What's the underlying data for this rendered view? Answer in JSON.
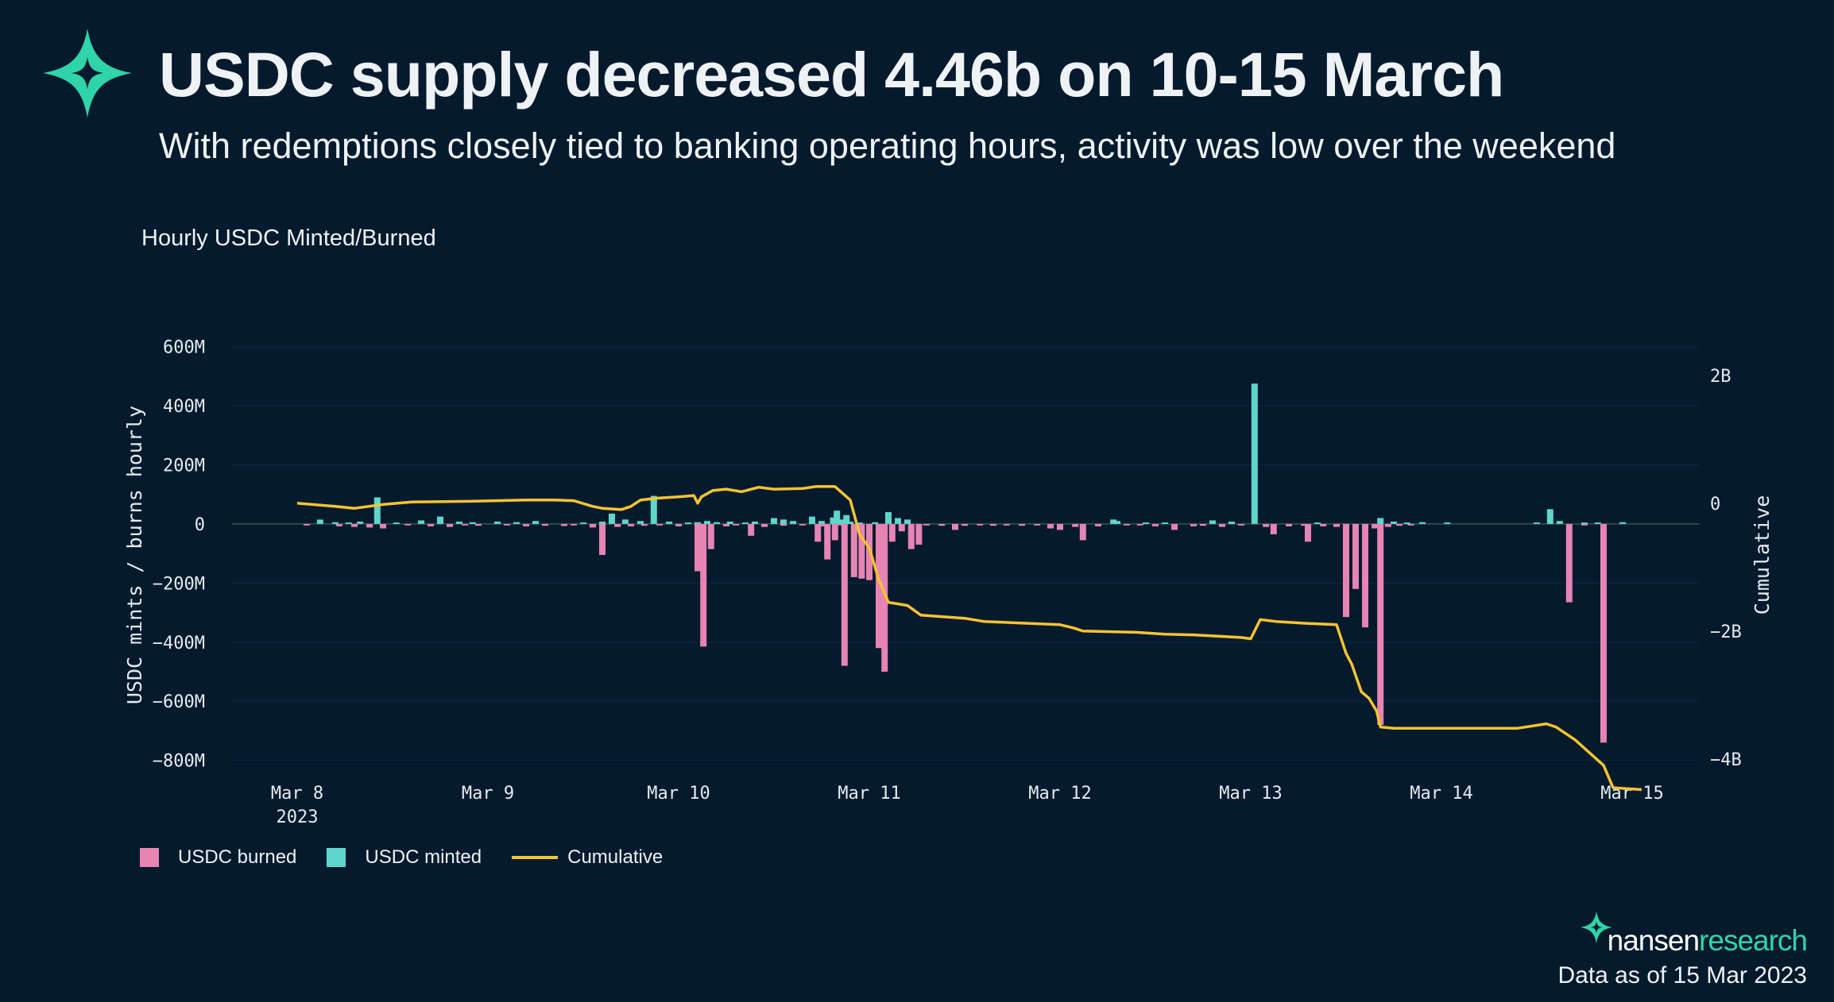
{
  "header": {
    "title": "USDC supply decreased 4.46b on 10-15 March",
    "subtitle": "With redemptions closely tied to banking operating hours, activity was low over the weekend"
  },
  "footer": {
    "brand_name": "nansen",
    "brand_suffix": "research",
    "data_as_of": "Data as of 15 Mar 2023"
  },
  "colors": {
    "background": "#061a2e",
    "burned": "#e684b3",
    "minted": "#5ed6cc",
    "cumulative": "#f5c431",
    "brand": "#2fd4a9"
  },
  "legend": [
    {
      "label": "USDC burned",
      "key": "burned"
    },
    {
      "label": "USDC minted",
      "key": "minted"
    },
    {
      "label": "Cumulative",
      "key": "cumulative"
    }
  ],
  "chart_data": {
    "type": "bar+line",
    "title": "Hourly USDC Minted/Burned",
    "ylabel": "USDC mints / burns hourly",
    "y2label": "Cumulative",
    "x_unit": "days since Mar 8 2023 00:00",
    "xlim": [
      -0.3,
      7.35
    ],
    "ylim": [
      -860,
      650
    ],
    "y2lim": [
      -4.3,
      2.68
    ],
    "x_ticks": [
      {
        "x": 0,
        "label": "Mar 8",
        "sub": "2023"
      },
      {
        "x": 1,
        "label": "Mar 9"
      },
      {
        "x": 2,
        "label": "Mar 10"
      },
      {
        "x": 3,
        "label": "Mar 11"
      },
      {
        "x": 4,
        "label": "Mar 12"
      },
      {
        "x": 5,
        "label": "Mar 13"
      },
      {
        "x": 6,
        "label": "Mar 14"
      },
      {
        "x": 7,
        "label": "Mar 15"
      }
    ],
    "y_ticks": [
      {
        "v": 600,
        "label": "600M"
      },
      {
        "v": 400,
        "label": "400M"
      },
      {
        "v": 200,
        "label": "200M"
      },
      {
        "v": 0,
        "label": "0"
      },
      {
        "v": -200,
        "label": "−200M"
      },
      {
        "v": -400,
        "label": "−400M"
      },
      {
        "v": -600,
        "label": "−600M"
      },
      {
        "v": -800,
        "label": "−800M"
      }
    ],
    "y2_ticks": [
      {
        "v": 2,
        "label": "2B"
      },
      {
        "v": 0,
        "label": "0"
      },
      {
        "v": -2,
        "label": "−2B"
      },
      {
        "v": -4,
        "label": "−4B"
      }
    ],
    "minted": [
      [
        0.12,
        15
      ],
      [
        0.2,
        6
      ],
      [
        0.27,
        5
      ],
      [
        0.33,
        8
      ],
      [
        0.42,
        90
      ],
      [
        0.52,
        5
      ],
      [
        0.65,
        12
      ],
      [
        0.75,
        25
      ],
      [
        0.85,
        8
      ],
      [
        0.92,
        6
      ],
      [
        1.05,
        8
      ],
      [
        1.15,
        6
      ],
      [
        1.25,
        10
      ],
      [
        1.5,
        5
      ],
      [
        1.6,
        8
      ],
      [
        1.65,
        35
      ],
      [
        1.72,
        15
      ],
      [
        1.8,
        10
      ],
      [
        1.87,
        95
      ],
      [
        1.95,
        8
      ],
      [
        2.05,
        5
      ],
      [
        2.15,
        10
      ],
      [
        2.1,
        6
      ],
      [
        2.2,
        6
      ],
      [
        2.27,
        8
      ],
      [
        2.35,
        5
      ],
      [
        2.4,
        8
      ],
      [
        2.5,
        20
      ],
      [
        2.55,
        15
      ],
      [
        2.6,
        10
      ],
      [
        2.7,
        25
      ],
      [
        2.75,
        10
      ],
      [
        2.81,
        22
      ],
      [
        2.85,
        15
      ],
      [
        2.9,
        8
      ],
      [
        2.95,
        5
      ],
      [
        2.83,
        45
      ],
      [
        2.88,
        30
      ],
      [
        3.03,
        6
      ],
      [
        3.1,
        40
      ],
      [
        3.15,
        20
      ],
      [
        3.2,
        15
      ],
      [
        4.28,
        15
      ],
      [
        4.3,
        10
      ],
      [
        4.45,
        5
      ],
      [
        4.55,
        5
      ],
      [
        4.8,
        12
      ],
      [
        4.9,
        8
      ],
      [
        5.02,
        475
      ],
      [
        5.35,
        5
      ],
      [
        5.68,
        20
      ],
      [
        5.75,
        8
      ],
      [
        5.82,
        5
      ],
      [
        5.9,
        6
      ],
      [
        6.03,
        5
      ],
      [
        6.5,
        5
      ],
      [
        6.57,
        50
      ],
      [
        6.62,
        10
      ],
      [
        6.75,
        5
      ],
      [
        6.82,
        5
      ],
      [
        6.95,
        6
      ]
    ],
    "burned": [
      [
        0.05,
        -5
      ],
      [
        0.22,
        -8
      ],
      [
        0.3,
        -10
      ],
      [
        0.38,
        -12
      ],
      [
        0.45,
        -15
      ],
      [
        0.58,
        -5
      ],
      [
        0.7,
        -8
      ],
      [
        0.8,
        -10
      ],
      [
        0.88,
        -5
      ],
      [
        0.95,
        -6
      ],
      [
        1.1,
        -5
      ],
      [
        1.2,
        -8
      ],
      [
        1.3,
        -6
      ],
      [
        1.4,
        -7
      ],
      [
        1.45,
        -5
      ],
      [
        1.55,
        -12
      ],
      [
        1.6,
        -105
      ],
      [
        1.68,
        -10
      ],
      [
        1.75,
        -8
      ],
      [
        1.82,
        -6
      ],
      [
        1.9,
        -5
      ],
      [
        2.0,
        -8
      ],
      [
        2.1,
        -30
      ],
      [
        2.25,
        -5
      ],
      [
        2.1,
        -160
      ],
      [
        2.13,
        -415
      ],
      [
        2.17,
        -85
      ],
      [
        2.25,
        -8
      ],
      [
        2.3,
        -5
      ],
      [
        2.38,
        -40
      ],
      [
        2.45,
        -10
      ],
      [
        2.55,
        -6
      ],
      [
        2.65,
        -5
      ],
      [
        2.75,
        -8
      ],
      [
        2.85,
        -5
      ],
      [
        2.95,
        -5
      ],
      [
        2.73,
        -60
      ],
      [
        2.78,
        -120
      ],
      [
        2.82,
        -55
      ],
      [
        2.87,
        -480
      ],
      [
        2.92,
        -180
      ],
      [
        2.96,
        -185
      ],
      [
        3.0,
        -190
      ],
      [
        3.05,
        -420
      ],
      [
        3.08,
        -500
      ],
      [
        3.12,
        -60
      ],
      [
        3.17,
        -25
      ],
      [
        3.22,
        -85
      ],
      [
        3.26,
        -70
      ],
      [
        3.3,
        -5
      ],
      [
        3.38,
        -6
      ],
      [
        3.45,
        -20
      ],
      [
        3.5,
        -6
      ],
      [
        3.58,
        -5
      ],
      [
        3.65,
        -6
      ],
      [
        3.72,
        -5
      ],
      [
        3.8,
        -6
      ],
      [
        3.88,
        -5
      ],
      [
        3.95,
        -15
      ],
      [
        4.0,
        -20
      ],
      [
        4.08,
        -10
      ],
      [
        4.12,
        -55
      ],
      [
        4.2,
        -8
      ],
      [
        4.35,
        -5
      ],
      [
        4.42,
        -5
      ],
      [
        4.5,
        -8
      ],
      [
        4.6,
        -20
      ],
      [
        4.7,
        -8
      ],
      [
        4.75,
        -6
      ],
      [
        4.85,
        -10
      ],
      [
        4.95,
        -5
      ],
      [
        5.08,
        -10
      ],
      [
        5.12,
        -35
      ],
      [
        5.2,
        -8
      ],
      [
        5.28,
        -6
      ],
      [
        5.3,
        -60
      ],
      [
        5.38,
        -8
      ],
      [
        5.45,
        -10
      ],
      [
        5.5,
        -6
      ],
      [
        5.5,
        -315
      ],
      [
        5.55,
        -220
      ],
      [
        5.6,
        -350
      ],
      [
        5.65,
        -15
      ],
      [
        5.68,
        -680
      ],
      [
        5.72,
        -10
      ],
      [
        5.78,
        -6
      ],
      [
        5.84,
        -5
      ],
      [
        6.67,
        -265
      ],
      [
        6.75,
        -5
      ],
      [
        6.85,
        -740
      ]
    ],
    "cumulative": [
      [
        0.0,
        0.0
      ],
      [
        0.2,
        -0.05
      ],
      [
        0.3,
        -0.08
      ],
      [
        0.45,
        -0.02
      ],
      [
        0.6,
        0.02
      ],
      [
        0.9,
        0.03
      ],
      [
        1.2,
        0.05
      ],
      [
        1.35,
        0.05
      ],
      [
        1.45,
        0.04
      ],
      [
        1.55,
        -0.05
      ],
      [
        1.6,
        -0.08
      ],
      [
        1.7,
        -0.1
      ],
      [
        1.75,
        -0.05
      ],
      [
        1.8,
        0.05
      ],
      [
        1.9,
        0.08
      ],
      [
        2.0,
        0.1
      ],
      [
        2.08,
        0.12
      ],
      [
        2.1,
        0.0
      ],
      [
        2.12,
        0.1
      ],
      [
        2.18,
        0.2
      ],
      [
        2.25,
        0.22
      ],
      [
        2.33,
        0.18
      ],
      [
        2.42,
        0.25
      ],
      [
        2.5,
        0.22
      ],
      [
        2.65,
        0.23
      ],
      [
        2.72,
        0.26
      ],
      [
        2.82,
        0.26
      ],
      [
        2.9,
        0.05
      ],
      [
        2.95,
        -0.5
      ],
      [
        3.0,
        -0.7
      ],
      [
        3.05,
        -1.2
      ],
      [
        3.1,
        -1.55
      ],
      [
        3.2,
        -1.6
      ],
      [
        3.27,
        -1.75
      ],
      [
        3.5,
        -1.8
      ],
      [
        3.6,
        -1.85
      ],
      [
        4.0,
        -1.9
      ],
      [
        4.07,
        -1.95
      ],
      [
        4.12,
        -2.0
      ],
      [
        4.4,
        -2.02
      ],
      [
        4.55,
        -2.05
      ],
      [
        4.7,
        -2.06
      ],
      [
        4.95,
        -2.1
      ],
      [
        5.0,
        -2.12
      ],
      [
        5.05,
        -1.82
      ],
      [
        5.13,
        -1.85
      ],
      [
        5.3,
        -1.88
      ],
      [
        5.45,
        -1.9
      ],
      [
        5.5,
        -2.35
      ],
      [
        5.53,
        -2.52
      ],
      [
        5.58,
        -2.95
      ],
      [
        5.62,
        -3.05
      ],
      [
        5.66,
        -3.25
      ],
      [
        5.68,
        -3.5
      ],
      [
        5.75,
        -3.52
      ],
      [
        6.0,
        -3.52
      ],
      [
        6.4,
        -3.52
      ],
      [
        6.55,
        -3.45
      ],
      [
        6.6,
        -3.5
      ],
      [
        6.7,
        -3.7
      ],
      [
        6.85,
        -4.1
      ],
      [
        6.9,
        -4.45
      ],
      [
        7.05,
        -4.48
      ]
    ]
  }
}
